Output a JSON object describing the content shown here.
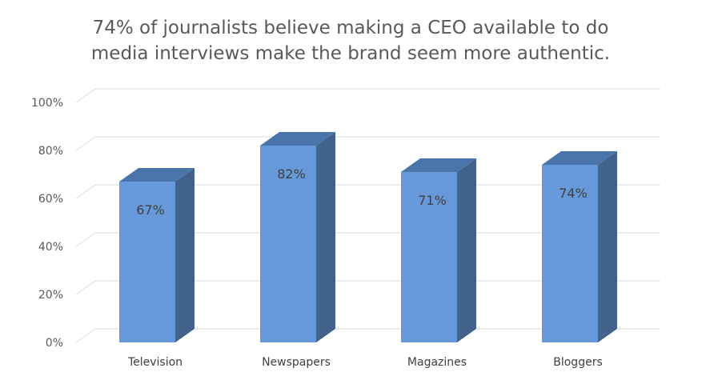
{
  "chart_data": {
    "type": "bar",
    "title_lines": [
      "74% of journalists believe making a CEO available to do",
      "media interviews make the brand seem more authentic."
    ],
    "categories": [
      "Television",
      "Newspapers",
      "Magazines",
      "Bloggers"
    ],
    "values": [
      67,
      82,
      71,
      74
    ],
    "data_labels": [
      "67%",
      "82%",
      "71%",
      "74%"
    ],
    "yticks": [
      "0%",
      "20%",
      "40%",
      "60%",
      "80%",
      "100%"
    ],
    "ylim": [
      0,
      100
    ],
    "grid": true,
    "legend": "none",
    "style": "3d-column",
    "colors": {
      "front": "#6699d9",
      "side": "#41628c",
      "top": "#4a75ab",
      "grid": "#d9d9d9"
    }
  }
}
